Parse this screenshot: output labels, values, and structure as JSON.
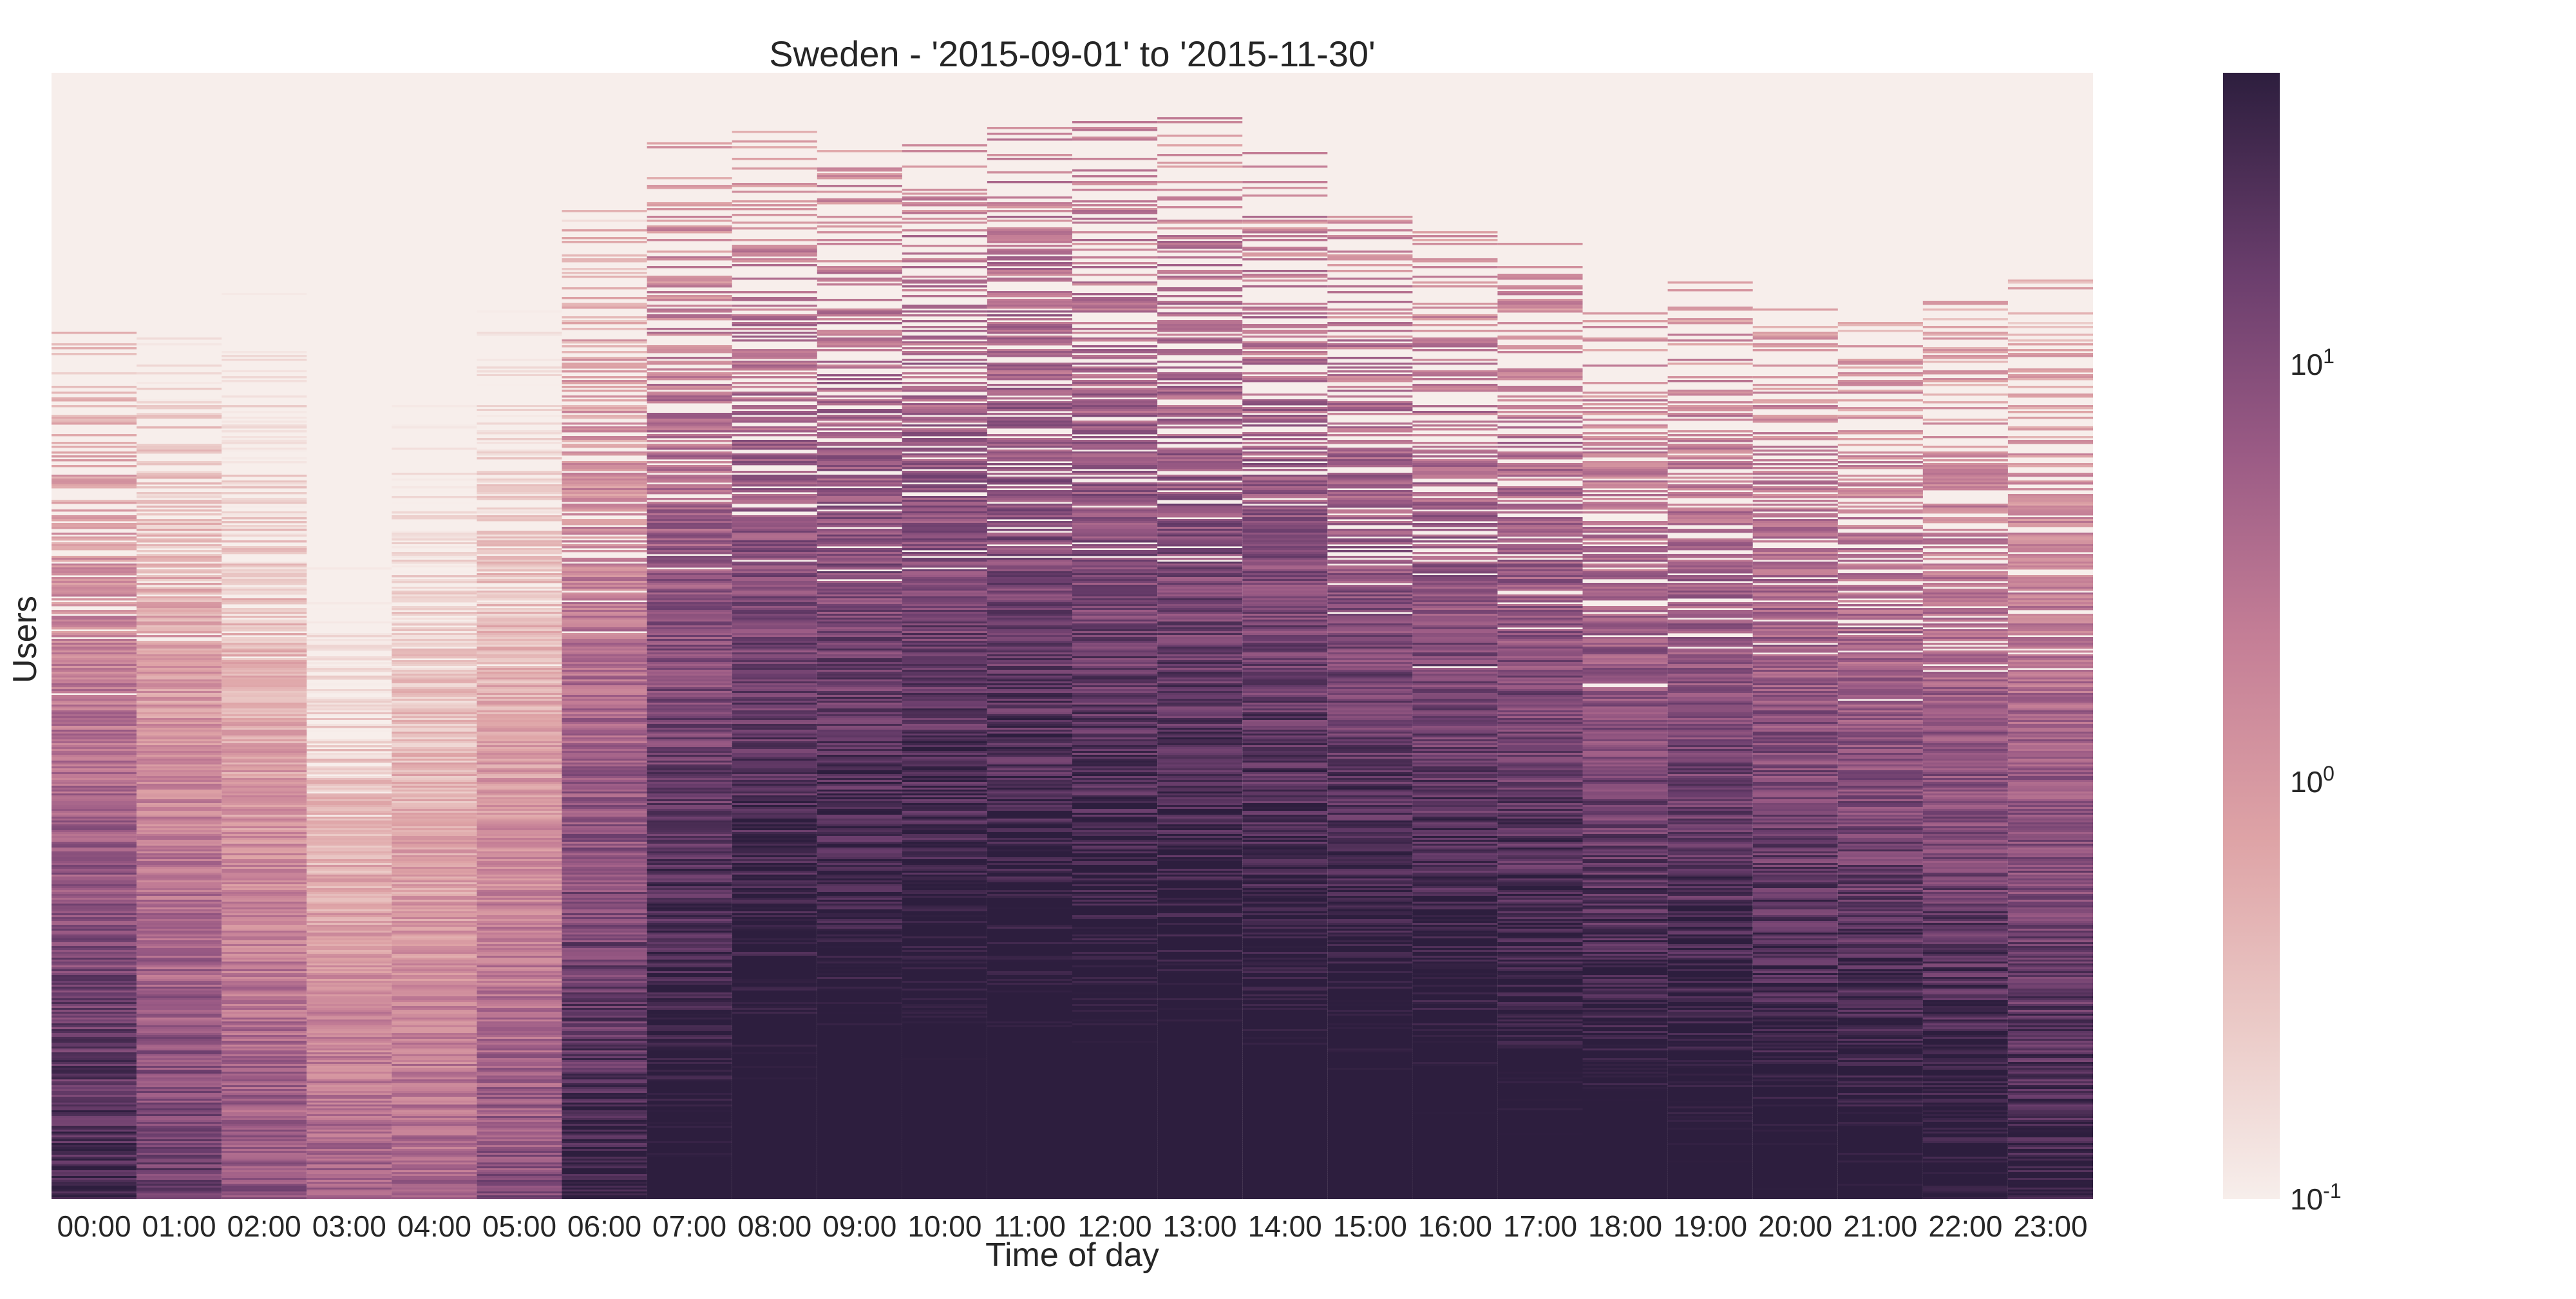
{
  "chart_data": {
    "type": "heatmap",
    "title": "Sweden - '2015-09-01' to '2015-11-30'",
    "xlabel": "Time of day",
    "ylabel": "Users",
    "x_categories": [
      "00:00",
      "01:00",
      "02:00",
      "03:00",
      "04:00",
      "05:00",
      "06:00",
      "07:00",
      "08:00",
      "09:00",
      "10:00",
      "11:00",
      "12:00",
      "13:00",
      "14:00",
      "15:00",
      "16:00",
      "17:00",
      "18:00",
      "19:00",
      "20:00",
      "21:00",
      "22:00",
      "23:00"
    ],
    "color_scale": "log",
    "colorbar": {
      "range": [
        0.1,
        50
      ],
      "ticks": [
        {
          "value": 0.1,
          "base": "10",
          "exp": "-1"
        },
        {
          "value": 1,
          "base": "10",
          "exp": "0"
        },
        {
          "value": 10,
          "base": "10",
          "exp": "1"
        }
      ],
      "low_color": "#f7eeeb",
      "high_color": "#2d1e3e"
    },
    "approx_median_by_hour": [
      4.5,
      1.8,
      0.9,
      0.6,
      0.5,
      1.0,
      5.0,
      12,
      18,
      20,
      22,
      22,
      21,
      21,
      20,
      19,
      18,
      16,
      14,
      14,
      12,
      11,
      9,
      6
    ],
    "approx_active_user_fraction_by_hour": [
      0.78,
      0.78,
      0.82,
      0.62,
      0.8,
      0.8,
      0.88,
      0.96,
      0.95,
      0.93,
      0.95,
      0.97,
      0.96,
      0.96,
      0.93,
      0.88,
      0.86,
      0.85,
      0.79,
      0.82,
      0.8,
      0.78,
      0.8,
      0.82
    ],
    "grid": false,
    "legend": "colorbar-right"
  }
}
